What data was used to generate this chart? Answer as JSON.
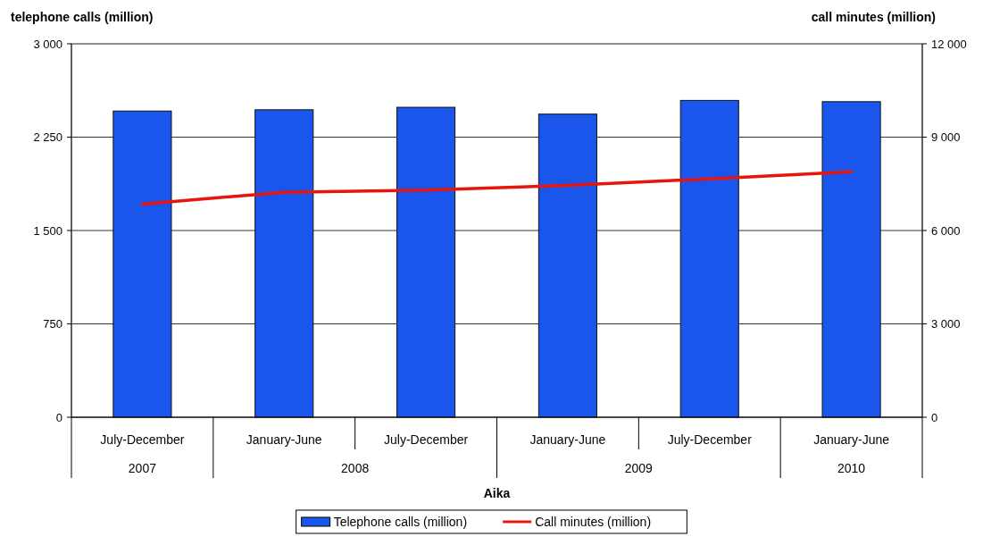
{
  "chart_data": {
    "type": "bar",
    "ylabel": "telephone calls (million)",
    "y2label": "call minutes (million)",
    "xlabel": "Aika",
    "categories": [
      "July-December",
      "January-June",
      "July-December",
      "January-June",
      "July-December",
      "January-June"
    ],
    "series": [
      {
        "name": "Telephone calls (million)",
        "color": "#1a56eb",
        "values": [
          2460,
          2470,
          2490,
          2435,
          2545,
          2535
        ]
      },
      {
        "name": "Call minutes (million)",
        "type": "line",
        "axis": "y2",
        "color": "#e8150d",
        "values": [
          6850,
          7230,
          7300,
          7450,
          7660,
          7890
        ]
      }
    ],
    "ylim": [
      0,
      3000
    ],
    "yticks": [
      {
        "value": 0,
        "label": "0"
      },
      {
        "value": 750,
        "label": "750"
      },
      {
        "value": 1500,
        "label": "1 500"
      },
      {
        "value": 2250,
        "label": "2 250"
      },
      {
        "value": 3000,
        "label": "3 000"
      }
    ],
    "y2lim": [
      0,
      12000
    ],
    "y2ticks": [
      {
        "value": 0,
        "label": "0"
      },
      {
        "value": 3000,
        "label": "3 000"
      },
      {
        "value": 6000,
        "label": "6 000"
      },
      {
        "value": 9000,
        "label": "9 000"
      },
      {
        "value": 12000,
        "label": "12 000"
      }
    ],
    "annotations": [
      "2007",
      "2008",
      "2009",
      "2010"
    ],
    "grid": "y",
    "legend": "bottom",
    "marker": "none",
    "line_style": "solid"
  }
}
